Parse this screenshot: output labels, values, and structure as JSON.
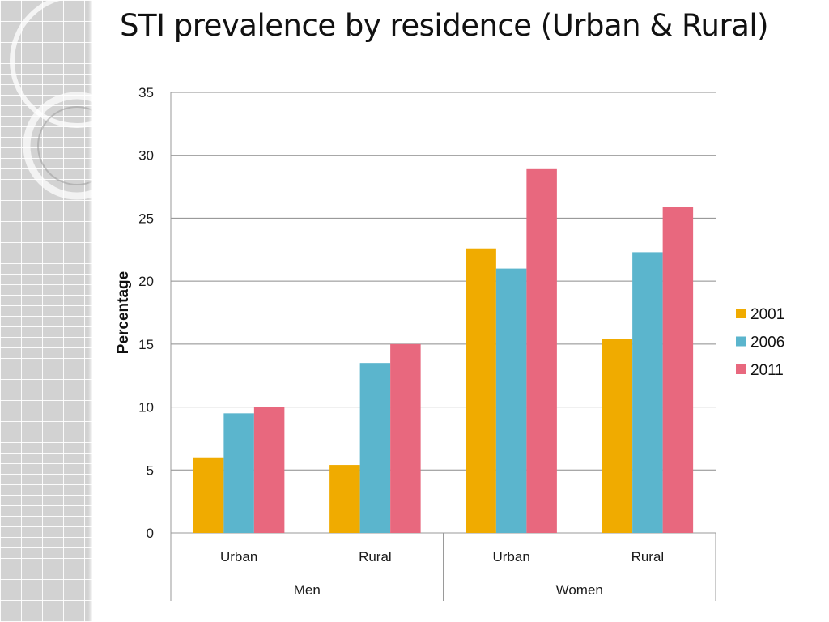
{
  "title": "STI prevalence by residence (Urban & Rural)",
  "chart_data": {
    "type": "bar",
    "title": "STI prevalence by residence (Urban & Rural)",
    "xlabel": "",
    "ylabel": "Percentage",
    "ylim": [
      0,
      35
    ],
    "yticks": [
      0,
      5,
      10,
      15,
      20,
      25,
      30,
      35
    ],
    "grid": true,
    "legend_position": "right",
    "groups": [
      {
        "label": "Men",
        "categories": [
          "Urban",
          "Rural"
        ]
      },
      {
        "label": "Women",
        "categories": [
          "Urban",
          "Rural"
        ]
      }
    ],
    "categories": [
      "Urban",
      "Rural",
      "Urban",
      "Rural"
    ],
    "series": [
      {
        "name": "2001",
        "color": "#f0ab00",
        "values": [
          6.0,
          5.4,
          22.6,
          15.4
        ]
      },
      {
        "name": "2006",
        "color": "#5bb5cd",
        "values": [
          9.5,
          13.5,
          21.0,
          22.3
        ]
      },
      {
        "name": "2011",
        "color": "#e8687e",
        "values": [
          10.0,
          15.0,
          28.9,
          25.9
        ]
      }
    ]
  }
}
